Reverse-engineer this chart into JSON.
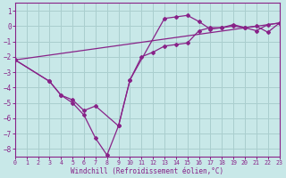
{
  "xlabel": "Windchill (Refroidissement éolien,°C)",
  "background_color": "#c8e8e8",
  "grid_color": "#aacece",
  "line_color": "#882288",
  "xlim": [
    0,
    23
  ],
  "ylim": [
    -8.5,
    1.5
  ],
  "yticks": [
    1,
    0,
    -1,
    -2,
    -3,
    -4,
    -5,
    -6,
    -7,
    -8
  ],
  "xticks": [
    0,
    1,
    2,
    3,
    4,
    5,
    6,
    7,
    8,
    9,
    10,
    11,
    12,
    13,
    14,
    15,
    16,
    17,
    18,
    19,
    20,
    21,
    22,
    23
  ],
  "trend_x": [
    0,
    23
  ],
  "trend_y": [
    -2.2,
    0.2
  ],
  "series1_x": [
    0,
    3,
    4,
    5,
    6,
    7,
    8,
    9,
    10,
    11,
    12,
    13,
    14,
    15,
    16,
    17,
    18,
    19,
    20,
    21,
    22,
    23
  ],
  "series1_y": [
    -2.2,
    -3.6,
    -4.5,
    -5.0,
    -5.8,
    -7.3,
    -8.4,
    -6.5,
    -3.5,
    -2.0,
    -1.7,
    -1.3,
    -1.2,
    -1.1,
    -0.3,
    -0.1,
    -0.1,
    0.1,
    -0.1,
    -0.3,
    0.1,
    0.2
  ],
  "series2_x": [
    0,
    3,
    4,
    5,
    6,
    7,
    9,
    10,
    13,
    14,
    15,
    16,
    17,
    18,
    19,
    20,
    21,
    22,
    23
  ],
  "series2_y": [
    -2.2,
    -3.6,
    -4.5,
    -4.8,
    -5.5,
    -5.2,
    -6.5,
    -3.5,
    0.5,
    0.6,
    0.7,
    0.3,
    -0.2,
    -0.1,
    0.0,
    -0.1,
    0.0,
    -0.4,
    0.2
  ]
}
